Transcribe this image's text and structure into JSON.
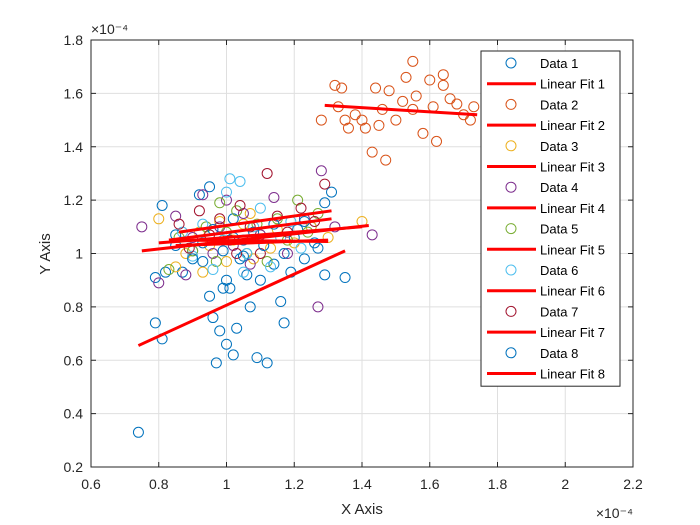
{
  "chart_data": {
    "type": "scatter",
    "xlabel": "X Axis",
    "ylabel": "Y Axis",
    "x_exponent_label": "×10⁻⁴",
    "y_exponent_label": "×10⁻⁴",
    "xlim": [
      0.6,
      2.2
    ],
    "ylim": [
      0.2,
      1.8
    ],
    "x_ticks": [
      "0.6",
      "0.8",
      "1",
      "1.2",
      "1.4",
      "1.6",
      "1.8",
      "2",
      "2.2"
    ],
    "y_ticks": [
      "0.2",
      "0.4",
      "0.6",
      "0.8",
      "1",
      "1.2",
      "1.4",
      "1.6",
      "1.8"
    ],
    "grid": true,
    "legend_position": "top-right",
    "fit_color": "#ff0000",
    "series": [
      {
        "name": "Data 1",
        "fit_name": "Linear Fit 1",
        "color": "#0072bd",
        "points": [
          [
            0.74,
            0.33
          ],
          [
            0.79,
            0.74
          ],
          [
            0.79,
            0.91
          ],
          [
            0.81,
            0.68
          ],
          [
            0.82,
            0.93
          ],
          [
            0.85,
            1.03
          ],
          [
            0.87,
            0.93
          ],
          [
            0.9,
            1.01
          ],
          [
            0.93,
            0.97
          ],
          [
            0.95,
            0.84
          ],
          [
            0.96,
            0.76
          ],
          [
            0.97,
            0.59
          ],
          [
            0.98,
            0.71
          ],
          [
            0.99,
            0.87
          ],
          [
            1.0,
            0.66
          ],
          [
            1.01,
            0.87
          ],
          [
            1.02,
            0.62
          ],
          [
            1.03,
            0.72
          ],
          [
            1.04,
            0.98
          ],
          [
            1.06,
            0.92
          ],
          [
            1.07,
            0.8
          ],
          [
            1.09,
            0.61
          ],
          [
            1.1,
            0.9
          ],
          [
            1.12,
            0.59
          ],
          [
            1.14,
            0.96
          ],
          [
            1.16,
            0.82
          ],
          [
            1.17,
            0.74
          ],
          [
            1.19,
            0.93
          ],
          [
            1.21,
            1.09
          ],
          [
            1.23,
            0.98
          ],
          [
            1.25,
            1.1
          ],
          [
            1.27,
            1.02
          ],
          [
            1.29,
            0.92
          ],
          [
            1.31,
            1.23
          ],
          [
            1.35,
            0.91
          ],
          [
            0.81,
            1.18
          ],
          [
            0.95,
            1.25
          ],
          [
            1.02,
            1.13
          ],
          [
            1.05,
            1.05
          ],
          [
            0.92,
            1.22
          ]
        ],
        "fit": [
          [
            0.74,
            0.655
          ],
          [
            1.35,
            1.01
          ]
        ]
      },
      {
        "name": "Data 2",
        "fit_name": "Linear Fit 2",
        "color": "#d95319",
        "points": [
          [
            1.28,
            1.5
          ],
          [
            1.32,
            1.63
          ],
          [
            1.33,
            1.55
          ],
          [
            1.34,
            1.62
          ],
          [
            1.35,
            1.5
          ],
          [
            1.36,
            1.47
          ],
          [
            1.38,
            1.52
          ],
          [
            1.4,
            1.5
          ],
          [
            1.41,
            1.47
          ],
          [
            1.43,
            1.38
          ],
          [
            1.44,
            1.62
          ],
          [
            1.46,
            1.54
          ],
          [
            1.47,
            1.35
          ],
          [
            1.48,
            1.61
          ],
          [
            1.5,
            1.5
          ],
          [
            1.52,
            1.57
          ],
          [
            1.53,
            1.66
          ],
          [
            1.55,
            1.72
          ],
          [
            1.56,
            1.59
          ],
          [
            1.58,
            1.45
          ],
          [
            1.6,
            1.65
          ],
          [
            1.61,
            1.55
          ],
          [
            1.62,
            1.42
          ],
          [
            1.64,
            1.63
          ],
          [
            1.66,
            1.58
          ],
          [
            1.68,
            1.56
          ],
          [
            1.7,
            1.52
          ],
          [
            1.72,
            1.5
          ],
          [
            1.73,
            1.55
          ],
          [
            1.55,
            1.54
          ],
          [
            1.45,
            1.48
          ],
          [
            1.64,
            1.67
          ]
        ],
        "fit": [
          [
            1.29,
            1.555
          ],
          [
            1.74,
            1.52
          ]
        ]
      },
      {
        "name": "Data 3",
        "fit_name": "Linear Fit 3",
        "color": "#edb120",
        "points": [
          [
            0.8,
            1.13
          ],
          [
            0.85,
            0.95
          ],
          [
            0.88,
            1.0
          ],
          [
            0.92,
            1.08
          ],
          [
            0.95,
            1.03
          ],
          [
            0.98,
            1.12
          ],
          [
            1.0,
            0.97
          ],
          [
            1.02,
            1.05
          ],
          [
            1.05,
            1.11
          ],
          [
            1.08,
            0.98
          ],
          [
            1.1,
            1.07
          ],
          [
            1.13,
            1.02
          ],
          [
            1.15,
            1.09
          ],
          [
            1.2,
            1.04
          ],
          [
            1.25,
            1.1
          ],
          [
            1.3,
            1.06
          ],
          [
            1.4,
            1.12
          ],
          [
            0.93,
            0.93
          ],
          [
            1.07,
            1.15
          ]
        ],
        "fit": [
          [
            0.8,
            1.04
          ],
          [
            1.4,
            1.1
          ]
        ]
      },
      {
        "name": "Data 4",
        "fit_name": "Linear Fit 4",
        "color": "#7e2f8e",
        "points": [
          [
            0.75,
            1.1
          ],
          [
            0.8,
            0.89
          ],
          [
            0.85,
            1.14
          ],
          [
            0.88,
            0.92
          ],
          [
            0.9,
            1.06
          ],
          [
            0.93,
            1.22
          ],
          [
            0.96,
            1.0
          ],
          [
            0.98,
            1.1
          ],
          [
            1.0,
            1.2
          ],
          [
            1.02,
            1.03
          ],
          [
            1.05,
            1.15
          ],
          [
            1.07,
            0.96
          ],
          [
            1.1,
            1.07
          ],
          [
            1.14,
            1.21
          ],
          [
            1.18,
            1.0
          ],
          [
            1.23,
            1.13
          ],
          [
            1.28,
            1.31
          ],
          [
            1.32,
            1.1
          ],
          [
            1.43,
            1.07
          ],
          [
            1.27,
            0.8
          ]
        ],
        "fit": [
          [
            0.75,
            1.01
          ],
          [
            1.42,
            1.105
          ]
        ]
      },
      {
        "name": "Data 5",
        "fit_name": "Linear Fit 5",
        "color": "#77ac30",
        "points": [
          [
            0.83,
            0.94
          ],
          [
            0.86,
            1.06
          ],
          [
            0.9,
            1.01
          ],
          [
            0.94,
            1.1
          ],
          [
            0.97,
            0.97
          ],
          [
            1.0,
            1.08
          ],
          [
            1.03,
            1.16
          ],
          [
            1.06,
            1.0
          ],
          [
            1.09,
            1.11
          ],
          [
            1.12,
            0.97
          ],
          [
            1.15,
            1.13
          ],
          [
            1.18,
            1.05
          ],
          [
            1.21,
            1.2
          ],
          [
            1.24,
            1.08
          ],
          [
            1.27,
            1.15
          ],
          [
            0.98,
            1.19
          ]
        ],
        "fit": [
          [
            0.83,
            1.05
          ],
          [
            1.31,
            1.13
          ]
        ]
      },
      {
        "name": "Data 6",
        "fit_name": "Linear Fit 6",
        "color": "#4dbeee",
        "points": [
          [
            0.87,
            1.08
          ],
          [
            0.9,
            0.99
          ],
          [
            0.93,
            1.11
          ],
          [
            0.96,
            0.94
          ],
          [
            0.99,
            1.05
          ],
          [
            1.01,
            1.28
          ],
          [
            1.04,
            1.27
          ],
          [
            1.06,
            1.0
          ],
          [
            1.08,
            1.1
          ],
          [
            1.1,
            1.17
          ],
          [
            1.13,
            0.95
          ],
          [
            1.16,
            1.06
          ],
          [
            1.19,
            1.12
          ],
          [
            1.22,
            1.02
          ],
          [
            1.0,
            1.23
          ],
          [
            1.05,
            0.93
          ]
        ],
        "fit": [
          [
            0.87,
            1.05
          ],
          [
            1.3,
            1.045
          ]
        ]
      },
      {
        "name": "Data 7",
        "fit_name": "Linear Fit 7",
        "color": "#a2142f",
        "points": [
          [
            0.86,
            1.11
          ],
          [
            0.89,
            1.02
          ],
          [
            0.92,
            1.16
          ],
          [
            0.95,
            1.07
          ],
          [
            0.98,
            1.13
          ],
          [
            1.01,
            1.05
          ],
          [
            1.04,
            1.18
          ],
          [
            1.07,
            1.1
          ],
          [
            1.1,
            1.0
          ],
          [
            1.12,
            1.3
          ],
          [
            1.15,
            1.14
          ],
          [
            1.18,
            1.08
          ],
          [
            1.22,
            1.17
          ],
          [
            1.26,
            1.12
          ],
          [
            1.29,
            1.26
          ],
          [
            1.03,
            1.0
          ]
        ],
        "fit": [
          [
            0.86,
            1.08
          ],
          [
            1.31,
            1.16
          ]
        ]
      },
      {
        "name": "Data 8",
        "fit_name": "Linear Fit 8",
        "color": "#0072bd",
        "points": [
          [
            0.85,
            1.07
          ],
          [
            0.9,
            0.98
          ],
          [
            0.93,
            1.04
          ],
          [
            0.96,
            1.09
          ],
          [
            0.99,
            1.01
          ],
          [
            1.02,
            1.06
          ],
          [
            1.05,
            0.99
          ],
          [
            1.08,
            1.08
          ],
          [
            1.11,
            1.03
          ],
          [
            1.14,
            1.11
          ],
          [
            1.17,
            1.0
          ],
          [
            1.2,
            1.06
          ],
          [
            1.23,
            1.12
          ],
          [
            1.26,
            1.04
          ],
          [
            1.29,
            1.19
          ],
          [
            1.0,
            0.9
          ]
        ],
        "fit": [
          [
            0.85,
            1.03
          ],
          [
            1.3,
            1.05
          ]
        ]
      }
    ]
  }
}
